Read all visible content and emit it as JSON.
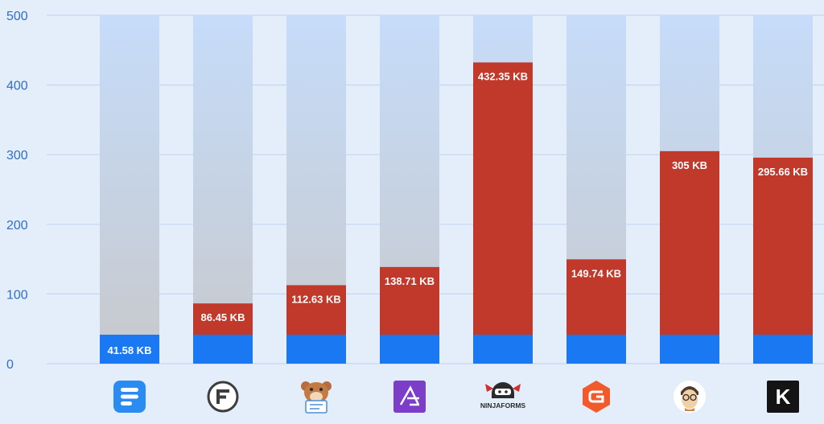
{
  "chart_data": {
    "type": "bar",
    "stacked": true,
    "title": "",
    "xlabel": "",
    "ylabel": "",
    "ylim": [
      0,
      500
    ],
    "yticks": [
      0,
      100,
      200,
      300,
      400,
      500
    ],
    "grid": true,
    "legend": "none",
    "colors": {
      "base": "#1a78f2",
      "extra": "#c0392b",
      "track_top": "#c6dcfa",
      "track_bottom": "#c7c9cc",
      "grid": "#c3d6f2",
      "tick_text": "#2f6fc8",
      "background": "#e4eefb"
    },
    "categories": [
      {
        "icon": "fluent-forms-icon",
        "value": 41.58,
        "label": "41.58 KB"
      },
      {
        "icon": "formidable-forms-icon",
        "value": 86.45,
        "label": "86.45 KB"
      },
      {
        "icon": "wpforms-bear-icon",
        "value": 112.63,
        "label": "112.63 KB"
      },
      {
        "icon": "everest-forms-icon",
        "value": 138.71,
        "label": "138.71 KB"
      },
      {
        "icon": "ninja-forms-icon",
        "value": 432.35,
        "label": "432.35 KB",
        "icon_text": "NINJAFORMS"
      },
      {
        "icon": "gravity-forms-icon",
        "value": 149.74,
        "label": "149.74 KB"
      },
      {
        "icon": "caldera-forms-avatar-icon",
        "value": 305,
        "label": "305 KB"
      },
      {
        "icon": "kali-forms-icon",
        "value": 295.66,
        "label": "295.66 KB",
        "icon_text": "K"
      }
    ]
  }
}
